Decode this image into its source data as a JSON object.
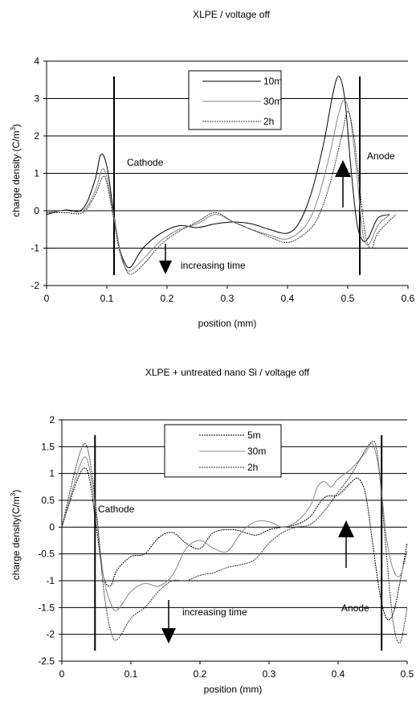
{
  "chart_data": [
    {
      "type": "line",
      "title": "XLPE / voltage off",
      "xlabel": "position (mm)",
      "ylabel": "charge density (C/m",
      "ylabel_sup": "3",
      "ylabel_end": ")",
      "xlim": [
        0,
        0.6
      ],
      "ylim": [
        -2,
        4
      ],
      "xticks": [
        0,
        0.1,
        0.2,
        0.3,
        0.4,
        0.5,
        0.6
      ],
      "xtick_labels": [
        "0",
        "0.1",
        "0.2",
        "0.3",
        "0.4",
        "0.5",
        "0.6"
      ],
      "yticks": [
        -2,
        -1,
        0,
        1,
        2,
        3,
        4
      ],
      "ytick_labels": [
        "-2",
        "-1",
        "0",
        "1",
        "2",
        "3",
        "4"
      ],
      "grid": "horizontal",
      "legend": "top-right",
      "series": [
        {
          "name": "10m",
          "color": "#000000",
          "points": [
            [
              0,
              -0.1
            ],
            [
              0.03,
              0.02
            ],
            [
              0.06,
              0.05
            ],
            [
              0.08,
              0.8
            ],
            [
              0.09,
              1.5
            ],
            [
              0.1,
              1.2
            ],
            [
              0.11,
              0.1
            ],
            [
              0.12,
              -0.9
            ],
            [
              0.13,
              -1.4
            ],
            [
              0.14,
              -1.5
            ],
            [
              0.16,
              -1.0
            ],
            [
              0.19,
              -0.6
            ],
            [
              0.22,
              -0.4
            ],
            [
              0.25,
              -0.45
            ],
            [
              0.28,
              -0.35
            ],
            [
              0.31,
              -0.3
            ],
            [
              0.34,
              -0.35
            ],
            [
              0.37,
              -0.5
            ],
            [
              0.4,
              -0.6
            ],
            [
              0.42,
              -0.3
            ],
            [
              0.44,
              0.5
            ],
            [
              0.46,
              1.8
            ],
            [
              0.475,
              3.1
            ],
            [
              0.485,
              3.6
            ],
            [
              0.495,
              3.0
            ],
            [
              0.505,
              1.2
            ],
            [
              0.515,
              -0.3
            ],
            [
              0.525,
              -0.8
            ],
            [
              0.535,
              -0.7
            ],
            [
              0.55,
              -0.2
            ],
            [
              0.57,
              -0.1
            ]
          ]
        },
        {
          "name": "30m",
          "color": "#888888",
          "points": [
            [
              0,
              -0.05
            ],
            [
              0.03,
              0.0
            ],
            [
              0.06,
              0.0
            ],
            [
              0.08,
              0.5
            ],
            [
              0.092,
              1.1
            ],
            [
              0.1,
              0.9
            ],
            [
              0.11,
              0.0
            ],
            [
              0.12,
              -0.9
            ],
            [
              0.13,
              -1.5
            ],
            [
              0.14,
              -1.6
            ],
            [
              0.16,
              -1.3
            ],
            [
              0.19,
              -0.8
            ],
            [
              0.22,
              -0.5
            ],
            [
              0.25,
              -0.35
            ],
            [
              0.28,
              -0.1
            ],
            [
              0.31,
              -0.3
            ],
            [
              0.34,
              -0.5
            ],
            [
              0.37,
              -0.65
            ],
            [
              0.4,
              -0.75
            ],
            [
              0.43,
              -0.4
            ],
            [
              0.45,
              0.3
            ],
            [
              0.47,
              1.5
            ],
            [
              0.485,
              2.6
            ],
            [
              0.495,
              2.95
            ],
            [
              0.505,
              2.4
            ],
            [
              0.515,
              1.0
            ],
            [
              0.525,
              -0.6
            ],
            [
              0.535,
              -0.9
            ],
            [
              0.55,
              -0.4
            ],
            [
              0.57,
              -0.1
            ]
          ]
        },
        {
          "name": "2h",
          "color": "#333333",
          "points": [
            [
              0,
              -0.05
            ],
            [
              0.03,
              -0.05
            ],
            [
              0.06,
              -0.05
            ],
            [
              0.08,
              0.4
            ],
            [
              0.093,
              0.9
            ],
            [
              0.1,
              0.75
            ],
            [
              0.11,
              -0.1
            ],
            [
              0.12,
              -1.0
            ],
            [
              0.13,
              -1.5
            ],
            [
              0.14,
              -1.7
            ],
            [
              0.16,
              -1.45
            ],
            [
              0.19,
              -0.9
            ],
            [
              0.22,
              -0.55
            ],
            [
              0.25,
              -0.3
            ],
            [
              0.28,
              -0.05
            ],
            [
              0.31,
              -0.3
            ],
            [
              0.34,
              -0.5
            ],
            [
              0.37,
              -0.7
            ],
            [
              0.4,
              -0.85
            ],
            [
              0.43,
              -0.6
            ],
            [
              0.45,
              -0.2
            ],
            [
              0.47,
              0.7
            ],
            [
              0.49,
              2.0
            ],
            [
              0.5,
              2.65
            ],
            [
              0.51,
              2.0
            ],
            [
              0.52,
              0.6
            ],
            [
              0.53,
              -0.7
            ],
            [
              0.54,
              -1.0
            ],
            [
              0.55,
              -0.6
            ],
            [
              0.58,
              -0.1
            ]
          ]
        }
      ],
      "vlines": [
        0.112,
        0.52
      ],
      "annotations": {
        "cathode": "Cathode",
        "anode": "Anode",
        "time": "increasing time"
      }
    },
    {
      "type": "line",
      "title": "XLPE + untreated nano Si / voltage off",
      "xlabel": "position (mm)",
      "ylabel": "charge density(C/m",
      "ylabel_sup": "3",
      "ylabel_end": ")",
      "xlim": [
        0,
        0.5
      ],
      "ylim": [
        -2.5,
        2
      ],
      "xticks": [
        0,
        0.1,
        0.2,
        0.3,
        0.4,
        0.5
      ],
      "xtick_labels": [
        "0",
        "0.1",
        "0.2",
        "0.3",
        "0.4",
        "0.5"
      ],
      "yticks": [
        -2.5,
        -2,
        -1.5,
        -1,
        -0.5,
        0,
        0.5,
        1,
        1.5,
        2
      ],
      "ytick_labels": [
        "-2.5",
        "-2",
        "-1.5",
        "-1",
        "-0.5",
        "0",
        "0.5",
        "1",
        "1.5",
        "2"
      ],
      "grid": "horizontal",
      "legend": "top-center",
      "series": [
        {
          "name": "5m",
          "color": "#000000",
          "points": [
            [
              0,
              0
            ],
            [
              0.02,
              0.8
            ],
            [
              0.032,
              1.1
            ],
            [
              0.04,
              0.9
            ],
            [
              0.05,
              0.0
            ],
            [
              0.06,
              -0.9
            ],
            [
              0.07,
              -1.1
            ],
            [
              0.08,
              -0.8
            ],
            [
              0.1,
              -0.55
            ],
            [
              0.12,
              -0.5
            ],
            [
              0.14,
              -0.2
            ],
            [
              0.16,
              -0.1
            ],
            [
              0.18,
              -0.3
            ],
            [
              0.2,
              -0.4
            ],
            [
              0.22,
              -0.1
            ],
            [
              0.25,
              -0.05
            ],
            [
              0.28,
              -0.15
            ],
            [
              0.3,
              -0.05
            ],
            [
              0.32,
              0.0
            ],
            [
              0.34,
              0.05
            ],
            [
              0.36,
              0.2
            ],
            [
              0.38,
              0.55
            ],
            [
              0.4,
              0.6
            ],
            [
              0.42,
              0.85
            ],
            [
              0.43,
              0.9
            ],
            [
              0.44,
              0.6
            ],
            [
              0.45,
              -0.3
            ],
            [
              0.46,
              -1.2
            ],
            [
              0.47,
              -1.7
            ],
            [
              0.48,
              -1.6
            ],
            [
              0.49,
              -1.0
            ],
            [
              0.5,
              -0.3
            ]
          ]
        },
        {
          "name": "30m",
          "color": "#888888",
          "points": [
            [
              0,
              0
            ],
            [
              0.02,
              0.9
            ],
            [
              0.032,
              1.3
            ],
            [
              0.04,
              1.1
            ],
            [
              0.05,
              0.2
            ],
            [
              0.06,
              -0.9
            ],
            [
              0.07,
              -1.4
            ],
            [
              0.08,
              -1.55
            ],
            [
              0.1,
              -1.2
            ],
            [
              0.12,
              -1.05
            ],
            [
              0.14,
              -1.1
            ],
            [
              0.16,
              -0.9
            ],
            [
              0.18,
              -0.4
            ],
            [
              0.2,
              -0.25
            ],
            [
              0.22,
              -0.4
            ],
            [
              0.24,
              -0.45
            ],
            [
              0.26,
              -0.1
            ],
            [
              0.28,
              0.1
            ],
            [
              0.3,
              0.1
            ],
            [
              0.32,
              0.0
            ],
            [
              0.34,
              0.1
            ],
            [
              0.36,
              0.4
            ],
            [
              0.37,
              0.75
            ],
            [
              0.38,
              0.85
            ],
            [
              0.39,
              0.75
            ],
            [
              0.4,
              0.9
            ],
            [
              0.42,
              1.1
            ],
            [
              0.44,
              1.4
            ],
            [
              0.45,
              1.55
            ],
            [
              0.46,
              1.0
            ],
            [
              0.47,
              -0.2
            ],
            [
              0.48,
              -0.8
            ],
            [
              0.49,
              -0.9
            ],
            [
              0.5,
              -0.45
            ]
          ]
        },
        {
          "name": "2h",
          "color": "#333333",
          "points": [
            [
              0,
              0
            ],
            [
              0.02,
              1.1
            ],
            [
              0.032,
              1.55
            ],
            [
              0.04,
              1.3
            ],
            [
              0.05,
              0.3
            ],
            [
              0.06,
              -1.1
            ],
            [
              0.07,
              -1.9
            ],
            [
              0.08,
              -2.1
            ],
            [
              0.1,
              -1.7
            ],
            [
              0.12,
              -1.5
            ],
            [
              0.14,
              -1.2
            ],
            [
              0.16,
              -1.0
            ],
            [
              0.18,
              -1.0
            ],
            [
              0.2,
              -0.9
            ],
            [
              0.22,
              -0.85
            ],
            [
              0.24,
              -0.75
            ],
            [
              0.26,
              -0.7
            ],
            [
              0.28,
              -0.6
            ],
            [
              0.3,
              -0.3
            ],
            [
              0.32,
              -0.1
            ],
            [
              0.34,
              0.0
            ],
            [
              0.36,
              0.05
            ],
            [
              0.38,
              0.3
            ],
            [
              0.4,
              0.65
            ],
            [
              0.42,
              1.0
            ],
            [
              0.44,
              1.45
            ],
            [
              0.45,
              1.6
            ],
            [
              0.455,
              1.5
            ],
            [
              0.46,
              1.0
            ],
            [
              0.47,
              -0.5
            ],
            [
              0.48,
              -1.8
            ],
            [
              0.49,
              -2.15
            ],
            [
              0.5,
              -1.5
            ]
          ]
        }
      ],
      "vlines": [
        0.048,
        0.463
      ],
      "annotations": {
        "cathode": "Cathode",
        "anode": "Anode",
        "time": "increasing time"
      }
    }
  ]
}
